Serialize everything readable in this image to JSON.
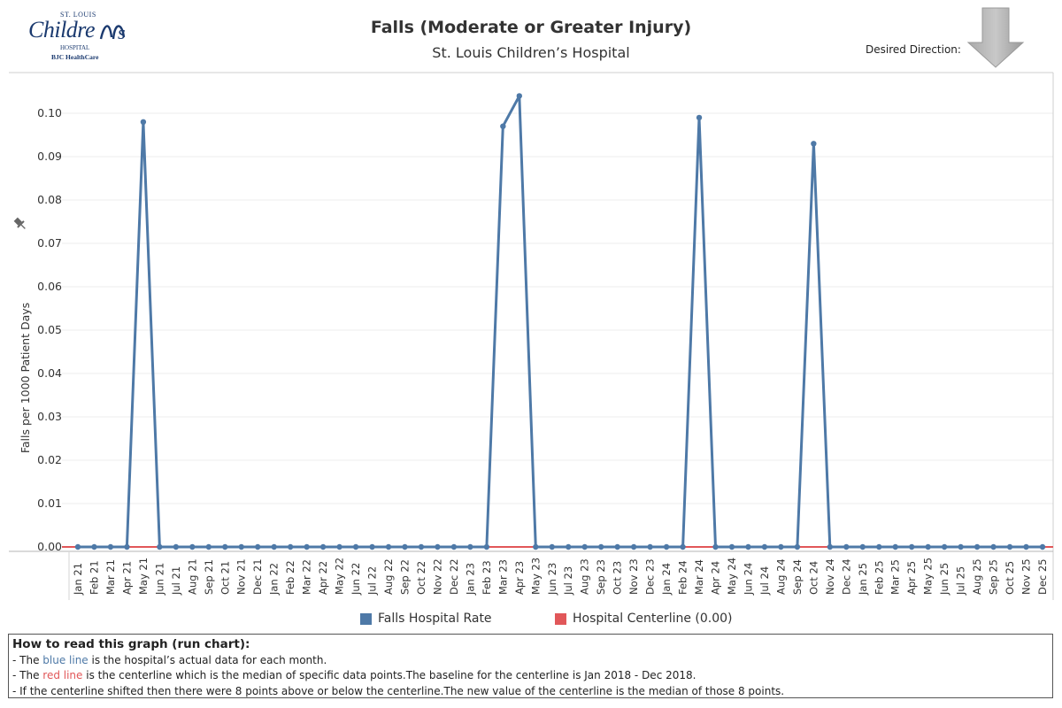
{
  "logo": {
    "top": "ST. LOUIS",
    "name": "Childre",
    "hospital": "HOSPITAL",
    "parent": "BJC HealthCare"
  },
  "header": {
    "title": "Falls (Moderate or Greater Injury)",
    "subtitle": "St. Louis Children’s Hospital",
    "desired_direction_label": "Desired Direction:"
  },
  "chart_data": {
    "type": "line",
    "title": "Falls (Moderate or Greater Injury)",
    "subtitle": "St. Louis Children’s Hospital",
    "ylabel": "Falls per 1000 Patient Days",
    "xlabel": "",
    "ylim": [
      0,
      0.11
    ],
    "yticks": [
      "0.00",
      "0.01",
      "0.02",
      "0.03",
      "0.04",
      "0.05",
      "0.06",
      "0.07",
      "0.08",
      "0.09",
      "0.10"
    ],
    "categories": [
      "Jan 21",
      "Feb 21",
      "Mar 21",
      "Apr 21",
      "May 21",
      "Jun 21",
      "Jul 21",
      "Aug 21",
      "Sep 21",
      "Oct 21",
      "Nov 21",
      "Dec 21",
      "Jan 22",
      "Feb 22",
      "Mar 22",
      "Apr 22",
      "May 22",
      "Jun 22",
      "Jul 22",
      "Aug 22",
      "Sep 22",
      "Oct 22",
      "Nov 22",
      "Dec 22",
      "Jan 23",
      "Feb 23",
      "Mar 23",
      "Apr 23",
      "May 23",
      "Jun 23",
      "Jul 23",
      "Aug 23",
      "Sep 23",
      "Oct 23",
      "Nov 23",
      "Dec 23",
      "Jan 24",
      "Feb 24",
      "Mar 24",
      "Apr 24",
      "May 24",
      "Jun 24",
      "Jul 24",
      "Aug 24",
      "Sep 24",
      "Oct 24",
      "Nov 24",
      "Dec 24",
      "Jan 25",
      "Feb 25",
      "Mar 25",
      "Apr 25",
      "May 25",
      "Jun 25",
      "Jul 25",
      "Aug 25",
      "Sep 25",
      "Oct 25",
      "Nov 25",
      "Dec 25"
    ],
    "series": [
      {
        "name": "Falls Hospital Rate",
        "color": "#4e79a7",
        "values": [
          0,
          0,
          0,
          0,
          0.098,
          0,
          0,
          0,
          0,
          0,
          0,
          0,
          0,
          0,
          0,
          0,
          0,
          0,
          0,
          0,
          0,
          0,
          0,
          0,
          0,
          0,
          0.097,
          0.104,
          0,
          0,
          0,
          0,
          0,
          0,
          0,
          0,
          0,
          0,
          0.099,
          0,
          0,
          0,
          0,
          0,
          0,
          0.093,
          0,
          0,
          0,
          0,
          0,
          0,
          0,
          0,
          0,
          0,
          0,
          0,
          0,
          0
        ]
      },
      {
        "name": "Hospital Centerline (0.00)",
        "color": "#e15759",
        "values": [
          0,
          0,
          0,
          0,
          0,
          0,
          0,
          0,
          0,
          0,
          0,
          0,
          0,
          0,
          0,
          0,
          0,
          0,
          0,
          0,
          0,
          0,
          0,
          0,
          0,
          0,
          0,
          0,
          0,
          0,
          0,
          0,
          0,
          0,
          0,
          0,
          0,
          0,
          0,
          0,
          0,
          0,
          0,
          0,
          0,
          0,
          0,
          0,
          0,
          0,
          0,
          0,
          0,
          0,
          0,
          0,
          0,
          0,
          0,
          0
        ]
      }
    ],
    "grid": true,
    "legend": "bottom"
  },
  "legend": {
    "item1": "Falls Hospital Rate",
    "item2": "Hospital Centerline (0.00)"
  },
  "notes": {
    "heading": "How to read this graph (run chart):",
    "l1_pre": "- The ",
    "l1_hl": "blue line",
    "l1_post": " is the hospital’s actual data for each month.",
    "l2_pre": "- The ",
    "l2_hl": "red line",
    "l2_post": " is the centerline which is the median of specific data points.The baseline for the centerline is Jan 2018 - Dec 2018.",
    "l3": "- If the centerline shifted then there were 8 points above or below the centerline.The new value of the centerline is the median of those 8 points."
  }
}
